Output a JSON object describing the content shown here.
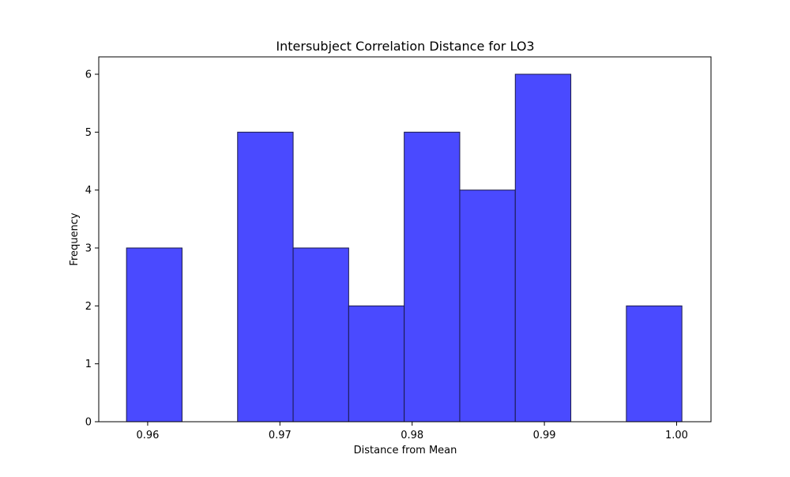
{
  "chart_data": {
    "type": "bar",
    "title": "Intersubject Correlation Distance for LO3",
    "xlabel": "Distance from Mean",
    "ylabel": "Frequency",
    "xlim": [
      0.9563,
      1.0026
    ],
    "ylim": [
      0,
      6.3
    ],
    "x_ticks": [
      0.96,
      0.97,
      0.98,
      0.99,
      1.0
    ],
    "x_tick_labels": [
      "0.96",
      "0.97",
      "0.98",
      "0.99",
      "1.00"
    ],
    "y_ticks": [
      0,
      1,
      2,
      3,
      4,
      5,
      6
    ],
    "y_tick_labels": [
      "0",
      "1",
      "2",
      "3",
      "4",
      "5",
      "6"
    ],
    "bin_edges": [
      0.9584,
      0.9626,
      0.9668,
      0.971,
      0.9752,
      0.9794,
      0.9836,
      0.9878,
      0.992,
      0.9962,
      1.0004
    ],
    "values": [
      3,
      0,
      5,
      3,
      2,
      5,
      4,
      6,
      0,
      2
    ],
    "bar_color": "#4a4aff",
    "bar_edge_color": "#1a1a4a",
    "grid": false,
    "legend": "none"
  }
}
